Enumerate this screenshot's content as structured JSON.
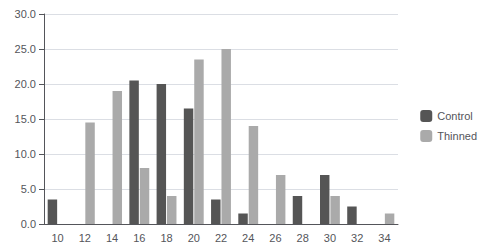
{
  "chart_data": {
    "type": "bar",
    "categories": [
      "10",
      "12",
      "14",
      "16",
      "18",
      "20",
      "22",
      "24",
      "26",
      "28",
      "30",
      "32",
      "34"
    ],
    "series": [
      {
        "name": "Control",
        "color": "#555555",
        "values": [
          3.5,
          0,
          0,
          20.5,
          20.0,
          16.5,
          3.5,
          1.5,
          0,
          4.0,
          7.0,
          2.5,
          0
        ]
      },
      {
        "name": "Thinned",
        "color": "#aaaaaa",
        "values": [
          0,
          14.5,
          19.0,
          8.0,
          4.0,
          23.5,
          25.0,
          14.0,
          7.0,
          0,
          4.0,
          0,
          1.5
        ]
      }
    ],
    "ylim": [
      0,
      30.0
    ],
    "yticks": [
      {
        "value": 0.0,
        "label": "0.0"
      },
      {
        "value": 5.0,
        "label": "5.0"
      },
      {
        "value": 10.0,
        "label": "10.0"
      },
      {
        "value": 15.0,
        "label": "15.0"
      },
      {
        "value": 20.0,
        "label": "20.0"
      },
      {
        "value": 25.0,
        "label": "25.0"
      },
      {
        "value": 30.0,
        "label": "30.0"
      }
    ],
    "grid": true,
    "legend": "right"
  }
}
